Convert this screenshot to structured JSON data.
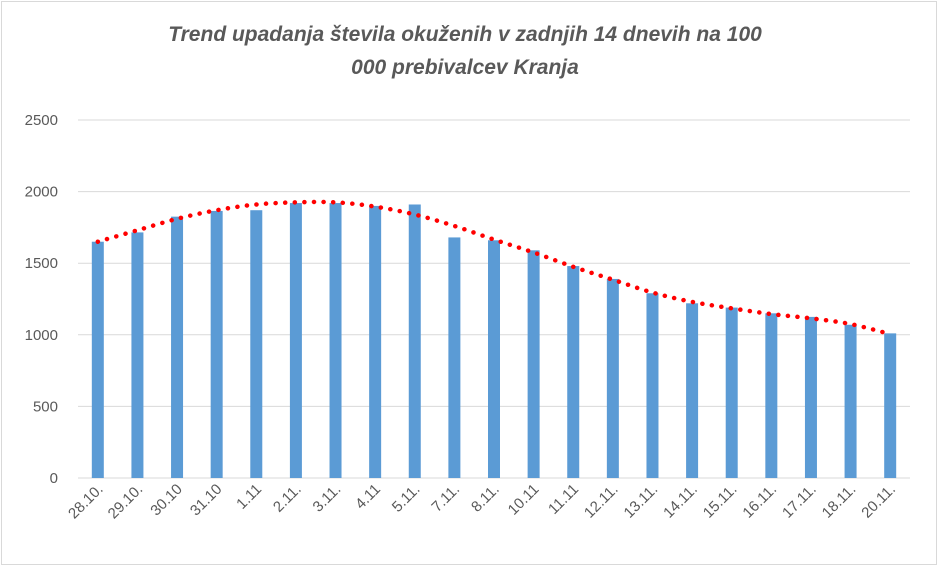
{
  "chart_data": {
    "type": "bar",
    "title_line1": "Trend upadanja števila okuženih v zadnjih 14 dnevih na 100",
    "title_line2": "000 prebivalcev Kranja",
    "xlabel": "",
    "ylabel": "",
    "ylim": [
      0,
      2500
    ],
    "yticks": [
      "0",
      "500",
      "1000",
      "1500",
      "2000",
      "2500"
    ],
    "grid": true,
    "legend": "none",
    "categories": [
      "28.10.",
      "29.10.",
      "30.10",
      "31.10",
      "1.11",
      "2.11.",
      "3.11.",
      "4.11",
      "5.11.",
      "7.11.",
      "8.11.",
      "10.11",
      "11.11",
      "12.11.",
      "13.11.",
      "14.11.",
      "15.11.",
      "16.11.",
      "17.11.",
      "18.11.",
      "20.11."
    ],
    "values": [
      1650,
      1715,
      1825,
      1865,
      1870,
      1920,
      1920,
      1900,
      1910,
      1680,
      1660,
      1590,
      1480,
      1390,
      1290,
      1220,
      1190,
      1150,
      1125,
      1070,
      1010
    ],
    "trend": [
      1650,
      1730,
      1810,
      1870,
      1910,
      1925,
      1925,
      1895,
      1840,
      1760,
      1665,
      1575,
      1475,
      1385,
      1295,
      1230,
      1185,
      1145,
      1115,
      1075,
      1005
    ],
    "colors": {
      "bar": "#5b9bd5",
      "trend": "#ff0000",
      "grid": "#d9d9d9",
      "text": "#595959"
    }
  }
}
